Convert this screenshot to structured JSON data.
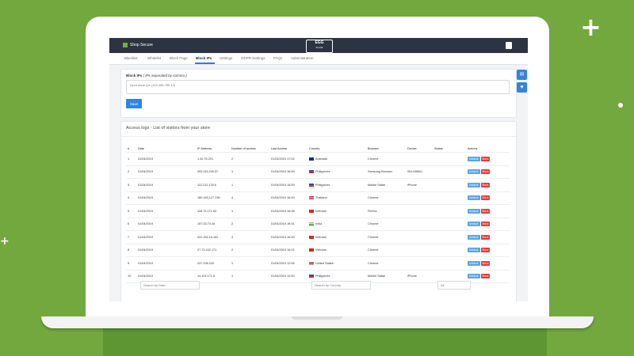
{
  "store": {
    "name": "Shop Secure"
  },
  "logo": {
    "line1": "EGG",
    "line2": "FLOW"
  },
  "nav": {
    "items": [
      "Blacklist",
      "Whitelist",
      "Block Page",
      "Block IPs",
      "Settings",
      "GDPR Settings",
      "FAQs",
      "Administration"
    ],
    "active": "Block IPs"
  },
  "block_ips": {
    "label": "Block IPs",
    "hint": "( IPs separated by comma )",
    "placeholder": "Input block ips (123.456.789.12)",
    "save_label": "Save"
  },
  "access_logs": {
    "title": "Access logs - List of visitors from your store",
    "columns": [
      "#",
      "Date",
      "IP Address",
      "Number of access",
      "Last Access",
      "Country",
      "Browser",
      "Device",
      "Status",
      "Actions"
    ],
    "unblock_label": "Unblock",
    "block_label": "Block",
    "rows": [
      {
        "n": "1",
        "date": "01/04/2019",
        "ip": "1.40.76.201",
        "access": "2",
        "last": "01/04/2019 17:02",
        "country": "Australia",
        "flag": "au",
        "browser": "Chrome",
        "device": "",
        "status": ""
      },
      {
        "n": "2",
        "date": "01/04/2019",
        "ip": "203.119.245.37",
        "access": "1",
        "last": "01/04/2019 16:59",
        "country": "Philippines",
        "flag": "ph",
        "browser": "Samsung Browser",
        "device": "SM-N960U",
        "status": ""
      },
      {
        "n": "3",
        "date": "01/04/2019",
        "ip": "112.211.178.6",
        "access": "1",
        "last": "01/04/2019 16:59",
        "country": "Philippines",
        "flag": "ph",
        "browser": "Mobile Safari",
        "device": "iPhone",
        "status": ""
      },
      {
        "n": "4",
        "date": "01/04/2019",
        "ip": "180.183.127.238",
        "access": "4",
        "last": "01/04/2019 16:49",
        "country": "Thailand",
        "flag": "th",
        "browser": "Chrome",
        "device": "",
        "status": ""
      },
      {
        "n": "5",
        "date": "01/04/2019",
        "ip": "118.70.171.63",
        "access": "1",
        "last": "01/04/2019 16:38",
        "country": "Vietnam",
        "flag": "vn",
        "browser": "Firefox",
        "device": "",
        "status": ""
      },
      {
        "n": "6",
        "date": "01/04/2019",
        "ip": "157.33.70.34",
        "access": "2",
        "last": "01/04/2019 16:31",
        "country": "India",
        "flag": "in",
        "browser": "Chrome",
        "device": "",
        "status": ""
      },
      {
        "n": "7",
        "date": "01/04/2019",
        "ip": "222.252.16.162",
        "access": "4",
        "last": "01/04/2019 16:33",
        "country": "Vietnam",
        "flag": "vn",
        "browser": "Chrome",
        "device": "",
        "status": ""
      },
      {
        "n": "8",
        "date": "01/04/2019",
        "ip": "27.72.102.171",
        "access": "2",
        "last": "01/04/2019 16:02",
        "country": "Vietnam",
        "flag": "vn",
        "browser": "Chrome",
        "device": "",
        "status": ""
      },
      {
        "n": "9",
        "date": "01/04/2019",
        "ip": "247.196.242",
        "access": "1",
        "last": "01/04/2019 12:56",
        "country": "United States",
        "flag": "us",
        "browser": "Chrome",
        "device": "",
        "status": ""
      },
      {
        "n": "10",
        "date": "01/04/2019",
        "ip": "14.102.171.5",
        "access": "1",
        "last": "01/04/2019 12:50",
        "country": "Philippines",
        "flag": "ph",
        "browser": "Mobile Safari",
        "device": "iPhone",
        "status": ""
      }
    ],
    "filters": {
      "date_placeholder": "Search by Date",
      "country_placeholder": "Search by Country",
      "status_value": "All"
    }
  },
  "colors": {
    "accent": "#2e86e0",
    "block": "#e23b3b",
    "unblock": "#5ba5e6",
    "background": "#72a83e"
  },
  "icons": {
    "chat": "chat-icon",
    "heart": "heart-icon",
    "user": "user-icon"
  }
}
